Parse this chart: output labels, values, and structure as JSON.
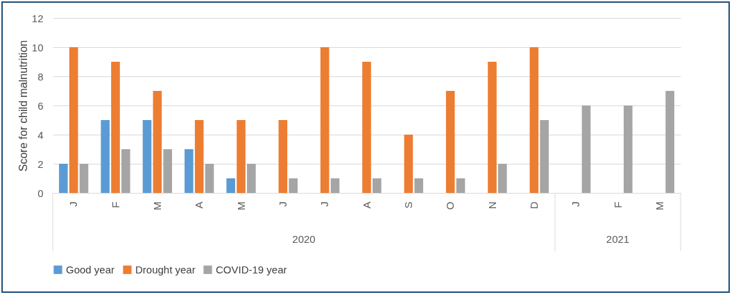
{
  "chart_data": {
    "type": "bar",
    "ylabel": "Score for child malnutrition",
    "categories": [
      "J",
      "F",
      "M",
      "A",
      "M",
      "J",
      "J",
      "A",
      "S",
      "O",
      "N",
      "D",
      "J",
      "F",
      "M"
    ],
    "series": [
      {
        "name": "Good year",
        "color": "#5b9bd5",
        "values": [
          2,
          5,
          5,
          3,
          1,
          null,
          null,
          null,
          null,
          null,
          null,
          null,
          null,
          null,
          null
        ]
      },
      {
        "name": "Drought year",
        "color": "#ed7d31",
        "values": [
          10,
          9,
          7,
          5,
          5,
          5,
          10,
          9,
          4,
          7,
          9,
          10,
          null,
          null,
          null
        ]
      },
      {
        "name": "COVID-19 year",
        "color": "#a5a5a5",
        "values": [
          2,
          3,
          3,
          2,
          2,
          1,
          1,
          1,
          1,
          1,
          2,
          5,
          6,
          6,
          7
        ]
      }
    ],
    "annotations": [
      "2020",
      "2021"
    ],
    "ylim": [
      0,
      12
    ],
    "yticks": [
      0,
      2,
      4,
      6,
      8,
      10,
      12
    ],
    "grid": "y",
    "legend": "bottom"
  }
}
